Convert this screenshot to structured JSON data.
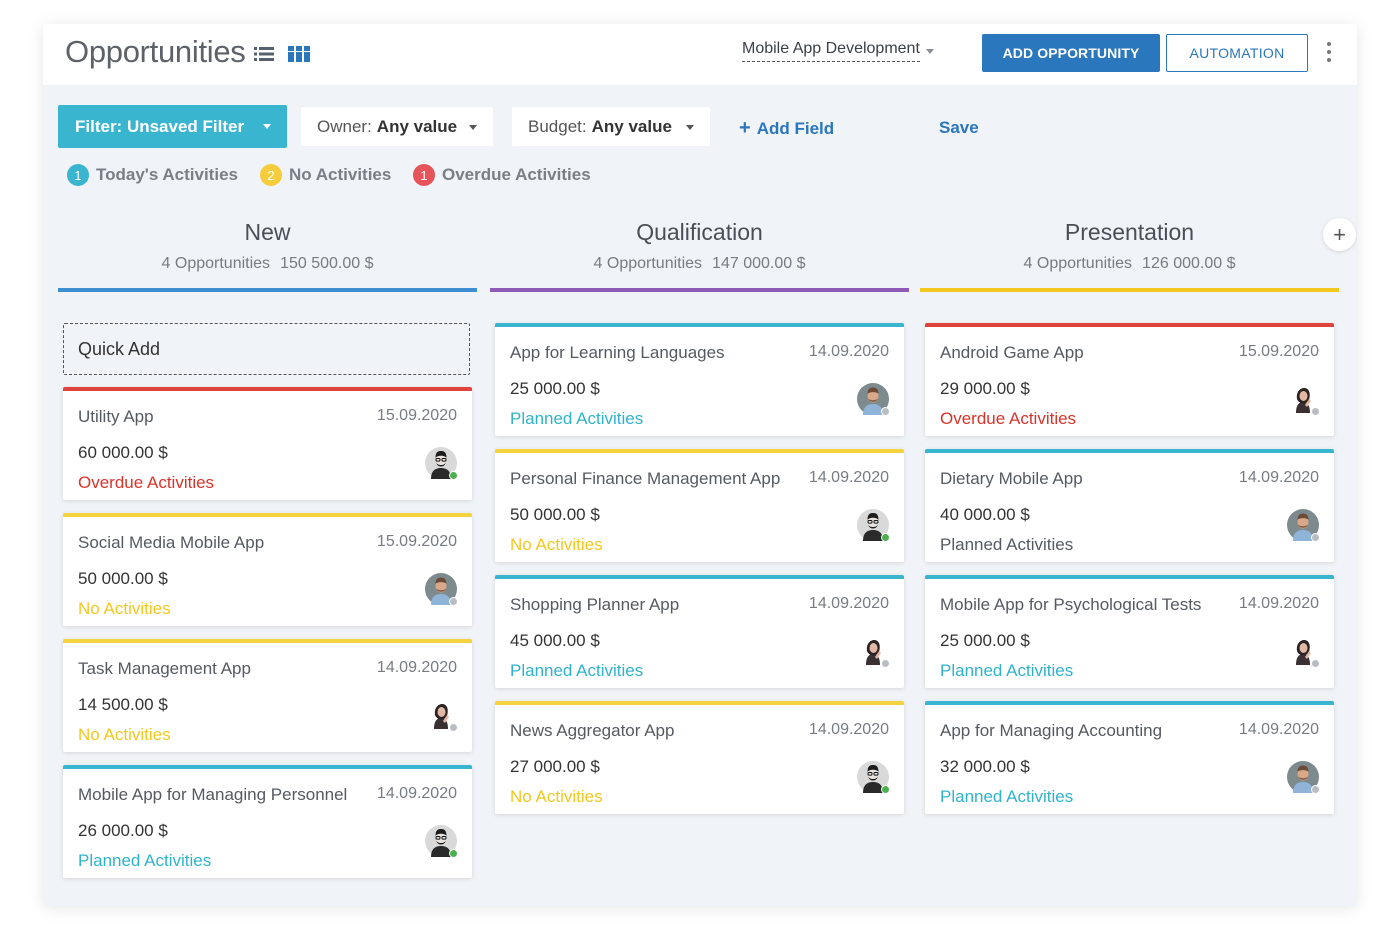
{
  "header": {
    "title": "Opportunities",
    "pipeline": "Mobile App Development",
    "add_opportunity": "ADD OPPORTUNITY",
    "automation": "AUTOMATION"
  },
  "filters": {
    "filter_label": "Filter: Unsaved Filter",
    "owner_label": "Owner:",
    "owner_value": "Any value",
    "budget_label": "Budget:",
    "budget_value": "Any value",
    "add_field": "Add Field",
    "save": "Save"
  },
  "legend": [
    {
      "count": "1",
      "label": "Today's Activities",
      "color": "#3ab5cf"
    },
    {
      "count": "2",
      "label": "No Activities",
      "color": "#f5cd3c"
    },
    {
      "count": "1",
      "label": "Overdue Activities",
      "color": "#e4545a"
    }
  ],
  "colors": {
    "overdue": "#d9342b",
    "none": "#f2c81f",
    "planned": "#2fb3cb",
    "neutral": "#555a61",
    "online": "#4caf50",
    "offline": "#b9bdc3"
  },
  "columns": [
    {
      "title": "New",
      "count_text": "4 Opportunities",
      "total": "150 500.00 $",
      "line_color": "#3d8fd1",
      "quick_add": "Quick Add",
      "cards": [
        {
          "title": "Utility App",
          "date": "15.09.2020",
          "amount": "60 000.00 $",
          "status": "Overdue Activities",
          "status_type": "overdue",
          "avatar": "man-glasses-avatar",
          "online": true
        },
        {
          "title": "Social Media Mobile App",
          "date": "15.09.2020",
          "amount": "50 000.00 $",
          "status": "No Activities",
          "status_type": "none",
          "avatar": "man-beard-avatar",
          "online": false
        },
        {
          "title": "Task Management App",
          "date": "14.09.2020",
          "amount": "14 500.00 $",
          "status": "No Activities",
          "status_type": "none",
          "avatar": "woman-avatar",
          "online": false
        },
        {
          "title": "Mobile App for Managing Personnel",
          "date": "14.09.2020",
          "amount": "26 000.00 $",
          "status": "Planned Activities",
          "status_type": "planned",
          "avatar": "man-glasses-avatar",
          "online": true
        }
      ]
    },
    {
      "title": "Qualification",
      "count_text": "4 Opportunities",
      "total": "147 000.00 $",
      "line_color": "#8e5ab8",
      "cards": [
        {
          "title": "App for Learning Languages",
          "date": "14.09.2020",
          "amount": "25 000.00 $",
          "status": "Planned Activities",
          "status_type": "planned",
          "avatar": "man-beard-avatar",
          "online": false
        },
        {
          "title": "Personal Finance Management App",
          "date": "14.09.2020",
          "amount": "50 000.00 $",
          "status": "No Activities",
          "status_type": "none",
          "avatar": "man-glasses-avatar",
          "online": true
        },
        {
          "title": "Shopping Planner App",
          "date": "14.09.2020",
          "amount": "45 000.00 $",
          "status": "Planned Activities",
          "status_type": "planned",
          "avatar": "woman-avatar",
          "online": false
        },
        {
          "title": "News Aggregator App",
          "date": "14.09.2020",
          "amount": "27 000.00 $",
          "status": "No Activities",
          "status_type": "none",
          "avatar": "man-glasses-avatar",
          "online": true
        }
      ]
    },
    {
      "title": "Presentation",
      "count_text": "4 Opportunities",
      "total": "126 000.00 $",
      "line_color": "#f2c81f",
      "cards": [
        {
          "title": "Android Game App",
          "date": "15.09.2020",
          "amount": "29 000.00 $",
          "status": "Overdue Activities",
          "status_type": "overdue",
          "avatar": "woman-avatar",
          "online": false
        },
        {
          "title": "Dietary Mobile App",
          "date": "14.09.2020",
          "amount": "40 000.00 $",
          "status": "Planned Activities",
          "status_type": "neutral",
          "avatar": "man-beard-avatar",
          "online": false
        },
        {
          "title": "Mobile App for Psychological Tests",
          "date": "14.09.2020",
          "amount": "25 000.00 $",
          "status": "Planned Activities",
          "status_type": "planned",
          "avatar": "woman-avatar",
          "online": false
        },
        {
          "title": "App for Managing Accounting",
          "date": "14.09.2020",
          "amount": "32 000.00 $",
          "status": "Planned Activities",
          "status_type": "planned",
          "avatar": "man-beard-avatar",
          "online": false
        }
      ]
    }
  ],
  "card_top_colors": {
    "overdue": "#e0433b",
    "none": "#f5d33e",
    "planned": "#3ab5cf",
    "neutral": "#3ab5cf"
  }
}
